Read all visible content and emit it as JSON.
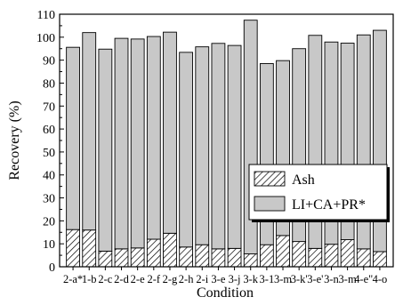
{
  "chart_data": {
    "type": "bar",
    "stacked": true,
    "xlabel": "Condition",
    "ylabel": "Recovery (%)",
    "ylim": [
      0,
      110
    ],
    "yticks": [
      0,
      10,
      20,
      30,
      40,
      50,
      60,
      70,
      80,
      90,
      100,
      110
    ],
    "grid": false,
    "legend_position": "right",
    "categories": [
      "2-a*",
      "1-b",
      "2-c",
      "2-d",
      "2-e",
      "2-f",
      "2-g",
      "2-h",
      "2-i",
      "3-e",
      "3-j",
      "3-k",
      "3-1",
      "3-m",
      "3-k'",
      "3-e'",
      "3-n",
      "3-m",
      "4-e",
      "4-o"
    ],
    "x_tick_labels": [
      "2-a*",
      "1-b",
      "2-c",
      "2-d",
      "2-e",
      "2-f",
      "2-g",
      "2-h",
      "2-i",
      "3-e",
      "3-j",
      "3-k",
      "3-1",
      "3-m",
      "3-k'",
      "3-e'",
      "3-n",
      "3-m",
      "4-e\"",
      "4-o"
    ],
    "series": [
      {
        "name": "Ash",
        "pattern": "hatch",
        "color": "#ffffff",
        "values": [
          16.2,
          16.0,
          6.8,
          7.8,
          8.2,
          12.0,
          14.6,
          8.6,
          9.6,
          7.8,
          8.0,
          5.6,
          9.6,
          13.6,
          11.0,
          8.0,
          9.8,
          11.8,
          7.8,
          6.6
        ]
      },
      {
        "name": "LI+CA+PR*",
        "color": "#c8c8c8",
        "values": [
          79.4,
          86.0,
          88.0,
          91.7,
          91.0,
          88.3,
          87.6,
          84.8,
          86.2,
          89.5,
          88.4,
          101.8,
          78.9,
          76.2,
          84.0,
          92.8,
          88.1,
          85.6,
          93.2,
          96.4
        ]
      }
    ]
  }
}
